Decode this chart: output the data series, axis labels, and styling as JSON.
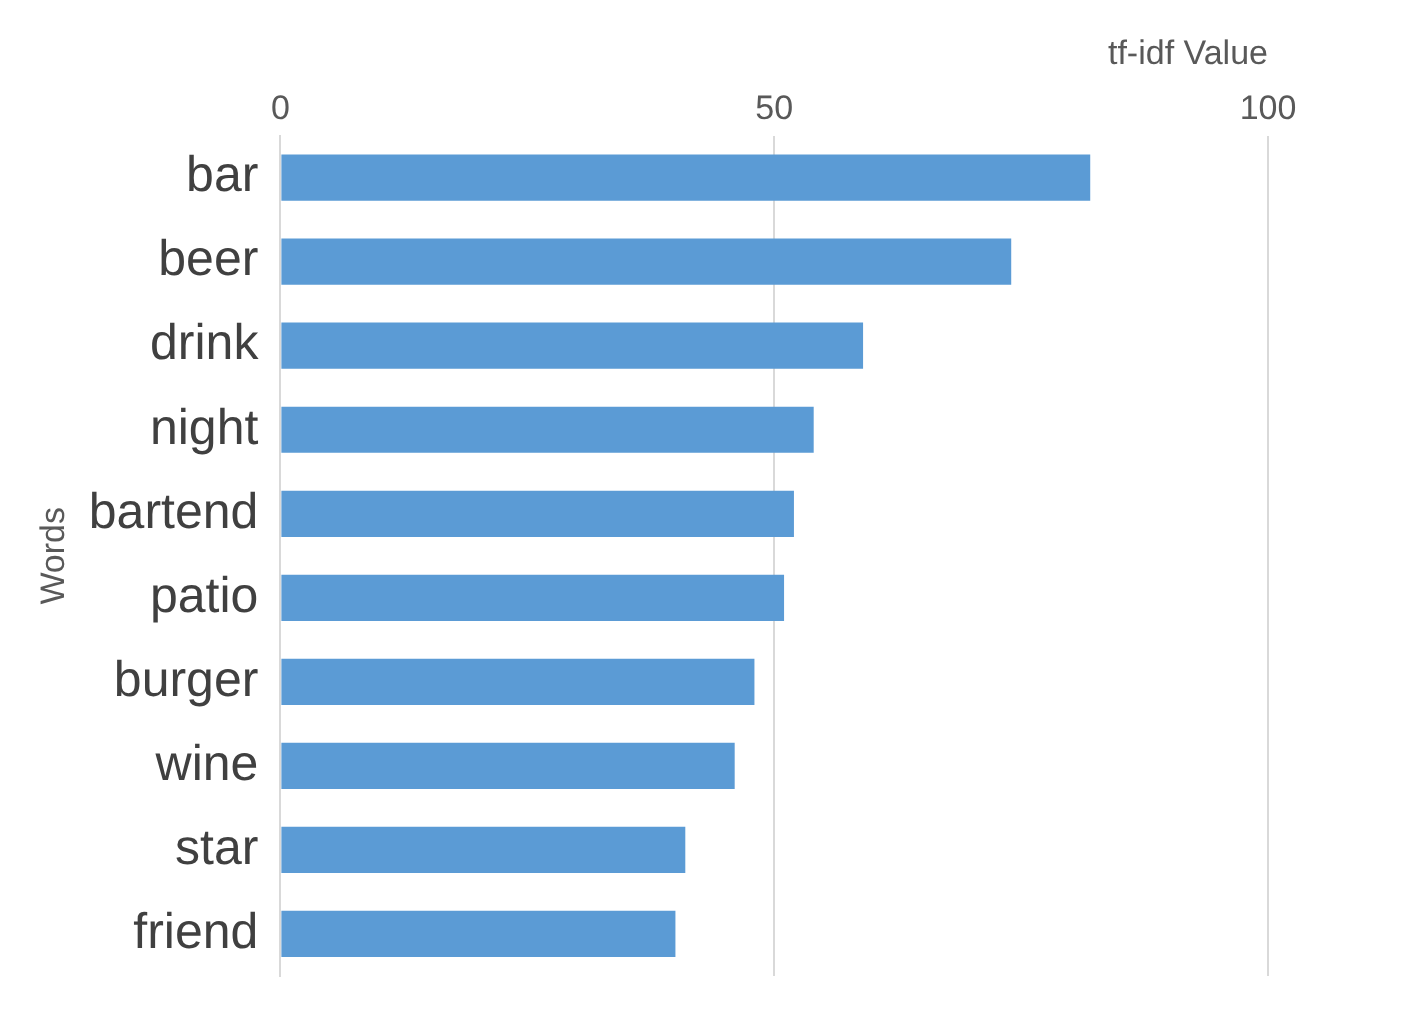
{
  "chart_data": {
    "type": "bar",
    "orientation": "horizontal",
    "xlabel": "tf-idf Value",
    "ylabel": "Words",
    "categories": [
      "bar",
      "beer",
      "drink",
      "night",
      "bartend",
      "patio",
      "burger",
      "wine",
      "star",
      "friend"
    ],
    "values": [
      82,
      74,
      59,
      54,
      52,
      51,
      48,
      46,
      41,
      40
    ],
    "color": "#5b9bd5",
    "xlim": [
      0,
      100
    ],
    "xticks": [
      0,
      50,
      100
    ],
    "grid": "x",
    "legend": false
  }
}
